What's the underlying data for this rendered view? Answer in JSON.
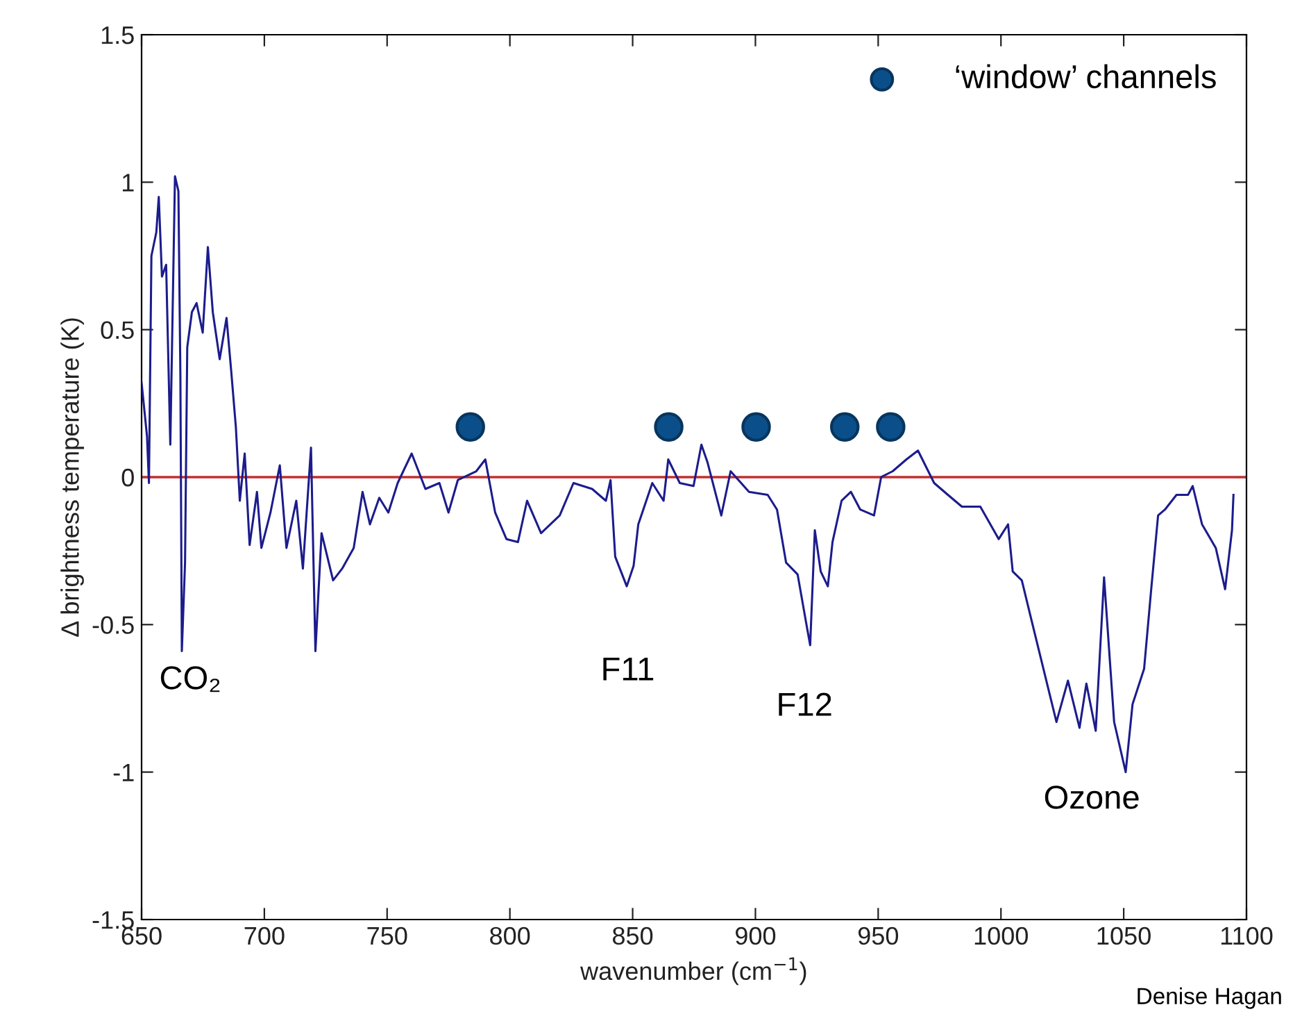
{
  "chart_data": {
    "type": "line",
    "xlabel": "wavenumber (cm$^{−1}$)",
    "ylabel": "Δ brightness temperature (K)",
    "xlim": [
      650,
      1100
    ],
    "xticks": [
      650,
      700,
      750,
      800,
      850,
      900,
      950,
      1000,
      1050,
      1100
    ],
    "ylim": [
      -1.5,
      1.5
    ],
    "yticks": [
      -1.5,
      -1,
      -0.5,
      0,
      0.5,
      1,
      1.5
    ],
    "grid": false,
    "legend": "top right",
    "series": [
      {
        "color": "#1c1c8c",
        "x": [
          650,
          652.2,
          653,
          654,
          656,
          657,
          658.3,
          660,
          661.7,
          663.6,
          665,
          665.8,
          666.4,
          667.7,
          668.6,
          670.5,
          672.4,
          674.9,
          677,
          679,
          681.8,
          684.6,
          686.5,
          688.4,
          690,
          692,
          694,
          697,
          698.8,
          702.5,
          706.3,
          709,
          713,
          715.7,
          719,
          720.8,
          723.3,
          728,
          731.7,
          736.4,
          740,
          743,
          746.8,
          750.5,
          754.3,
          760,
          765.6,
          771.3,
          775,
          778.8,
          786.3,
          790,
          794,
          798.6,
          803.3,
          807,
          812.7,
          820.3,
          825.9,
          833.5,
          839.1,
          841,
          842.9,
          847.6,
          850.4,
          852.3,
          858,
          862.6,
          864.5,
          869.2,
          874.8,
          878,
          880.5,
          886.1,
          889.9,
          897.4,
          905,
          908.8,
          912.5,
          917.2,
          921,
          922.3,
          924.2,
          926.6,
          929.5,
          931.4,
          935.1,
          938.9,
          942.7,
          948.3,
          951.2,
          955.9,
          961.5,
          966.2,
          972.8,
          978.4,
          984.1,
          991.6,
          999.1,
          1002.9,
          1004.8,
          1008.5,
          1012.3,
          1017.9,
          1022.6,
          1027.3,
          1032,
          1034.8,
          1038.6,
          1042,
          1046.1,
          1050.8,
          1053.6,
          1058.3,
          1061.2,
          1064,
          1066.8,
          1071.5,
          1076.2,
          1078.1,
          1081.9,
          1087.5,
          1091.3,
          1094.1,
          1094.7
        ],
        "values": [
          0.32,
          0.14,
          -0.02,
          0.75,
          0.83,
          0.95,
          0.68,
          0.72,
          0.11,
          1.02,
          0.97,
          0.35,
          -0.59,
          -0.29,
          0.44,
          0.56,
          0.59,
          0.49,
          0.78,
          0.56,
          0.4,
          0.54,
          0.36,
          0.17,
          -0.08,
          0.08,
          -0.23,
          -0.05,
          -0.24,
          -0.12,
          0.04,
          -0.24,
          -0.08,
          -0.31,
          0.1,
          -0.59,
          -0.19,
          -0.35,
          -0.31,
          -0.24,
          -0.05,
          -0.16,
          -0.07,
          -0.12,
          -0.02,
          0.08,
          -0.04,
          -0.02,
          -0.12,
          -0.01,
          0.02,
          0.06,
          -0.12,
          -0.21,
          -0.22,
          -0.08,
          -0.19,
          -0.13,
          -0.02,
          -0.04,
          -0.08,
          -0.01,
          -0.27,
          -0.37,
          -0.3,
          -0.16,
          -0.02,
          -0.08,
          0.06,
          -0.02,
          -0.03,
          0.11,
          0.05,
          -0.13,
          0.02,
          -0.05,
          -0.06,
          -0.11,
          -0.29,
          -0.33,
          -0.51,
          -0.57,
          -0.18,
          -0.32,
          -0.37,
          -0.22,
          -0.08,
          -0.05,
          -0.11,
          -0.13,
          0.0,
          0.02,
          0.06,
          0.09,
          -0.02,
          -0.06,
          -0.1,
          -0.1,
          -0.21,
          -0.16,
          -0.32,
          -0.35,
          -0.48,
          -0.67,
          -0.83,
          -0.69,
          -0.85,
          -0.7,
          -0.86,
          -0.34,
          -0.83,
          -1.0,
          -0.77,
          -0.65,
          -0.38,
          -0.13,
          -0.11,
          -0.06,
          -0.06,
          -0.03,
          -0.16,
          -0.24,
          -0.38,
          -0.18,
          -0.06
        ]
      },
      {
        "type": "scatter",
        "name": "‘window’ channels",
        "color": "#0b4f8a",
        "marker": "circle",
        "x": [
          783.9,
          864.7,
          900.3,
          936.4,
          955.1
        ],
        "values": [
          0.17,
          0.17,
          0.17,
          0.17,
          0.17
        ]
      }
    ],
    "ref_lines": [
      {
        "axis": "y",
        "value": 0,
        "color": "#c03030"
      }
    ],
    "annotations": [
      "CO₂",
      "F11",
      "F12",
      "Ozone",
      "Denise Hagan"
    ]
  }
}
